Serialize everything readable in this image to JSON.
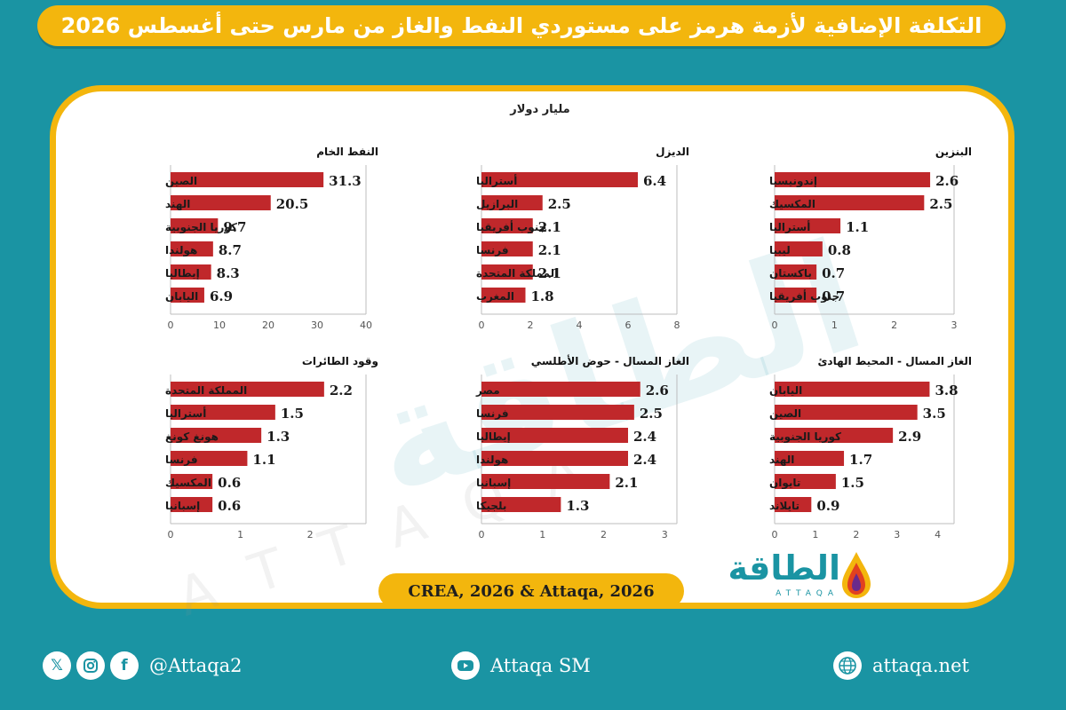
{
  "title": "التكلفة الإضافية لأزمة هرمز على مستوردي النفط والغاز من مارس حتى أغسطس 2026",
  "unit": "مليار دولار",
  "watermark": "الطاقة",
  "source": "CREA, 2026 & Attaqa, 2026",
  "logo": {
    "arabic": "الطاقة",
    "english": "ATTAQA"
  },
  "footer": {
    "social_handle": "@Attaqa2",
    "youtube": "Attaqa SM",
    "website": "attaqa.net",
    "icons": [
      "x-icon",
      "instagram-icon",
      "facebook-icon",
      "youtube-icon",
      "globe-icon"
    ]
  },
  "colors": {
    "background": "#1a94a3",
    "accent": "#f3b60d",
    "bar": "#c0282b"
  },
  "chart_data": [
    {
      "type": "bar",
      "orientation": "horizontal",
      "title": "النفط الخام",
      "categories": [
        "الصين",
        "الهند",
        "كوريا الجنوبية",
        "هولندا",
        "إيطاليا",
        "اليابان"
      ],
      "values": [
        31.3,
        20.5,
        9.7,
        8.7,
        8.3,
        6.9
      ],
      "value_labels": [
        "31.3",
        "20.5",
        "9.7",
        "8.7",
        "8.3",
        "6.9"
      ],
      "xlim": [
        0,
        40
      ],
      "ticks": [
        "0",
        "10",
        "20",
        "30",
        "40"
      ]
    },
    {
      "type": "bar",
      "orientation": "horizontal",
      "title": "الديزل",
      "categories": [
        "أستراليا",
        "البرازيل",
        "جنوب أفريقيا",
        "فرنسا",
        "المملكة المتحدة",
        "المغرب"
      ],
      "values": [
        6.4,
        2.5,
        2.1,
        2.1,
        2.1,
        1.8
      ],
      "value_labels": [
        "6.4",
        "2.5",
        "2.1",
        "2.1",
        "2.1",
        "1.8"
      ],
      "xlim": [
        0,
        8
      ],
      "ticks": [
        "0",
        "2",
        "4",
        "6",
        "8"
      ]
    },
    {
      "type": "bar",
      "orientation": "horizontal",
      "title": "البنزين",
      "categories": [
        "إندونيسيا",
        "المكسيك",
        "أستراليا",
        "ليبيا",
        "باكستان",
        "جنوب أفريقيا"
      ],
      "values": [
        2.6,
        2.5,
        1.1,
        0.8,
        0.7,
        0.7
      ],
      "value_labels": [
        "2.6",
        "2.5",
        "1.1",
        "0.8",
        "0.7",
        "0.7"
      ],
      "xlim": [
        0,
        3
      ],
      "ticks": [
        "0",
        "1",
        "2",
        "3"
      ]
    },
    {
      "type": "bar",
      "orientation": "horizontal",
      "title": "وقود الطائرات",
      "categories": [
        "المملكة المتحدة",
        "أستراليا",
        "هونغ كونغ",
        "فرنسا",
        "المكسيك",
        "إسبانيا"
      ],
      "values": [
        2.2,
        1.5,
        1.3,
        1.1,
        0.6,
        0.6
      ],
      "value_labels": [
        "2.2",
        "1.5",
        "1.3",
        "1.1",
        "0.6",
        "0.6"
      ],
      "xlim": [
        0,
        2.8
      ],
      "ticks": [
        "0",
        "1",
        "2"
      ]
    },
    {
      "type": "bar",
      "orientation": "horizontal",
      "title": "الغاز المسال - حوض الأطلسي",
      "categories": [
        "مصر",
        "فرنسا",
        "إيطاليا",
        "هولندا",
        "إسبانيا",
        "بلجيكا"
      ],
      "values": [
        2.6,
        2.5,
        2.4,
        2.4,
        2.1,
        1.3
      ],
      "value_labels": [
        "2.6",
        "2.5",
        "2.4",
        "2.4",
        "2.1",
        "1.3"
      ],
      "xlim": [
        0,
        3.2
      ],
      "ticks": [
        "0",
        "1",
        "2",
        "3"
      ]
    },
    {
      "type": "bar",
      "orientation": "horizontal",
      "title": "الغاز المسال - المحيط الهادئ",
      "categories": [
        "اليابان",
        "الصين",
        "كوريا الجنوبية",
        "الهند",
        "تايوان",
        "تايلاند"
      ],
      "values": [
        3.8,
        3.5,
        2.9,
        1.7,
        1.5,
        0.9
      ],
      "value_labels": [
        "3.8",
        "3.5",
        "2.9",
        "1.7",
        "1.5",
        "0.9"
      ],
      "xlim": [
        0,
        4.4
      ],
      "ticks": [
        "0",
        "1",
        "2",
        "3",
        "4"
      ]
    }
  ]
}
